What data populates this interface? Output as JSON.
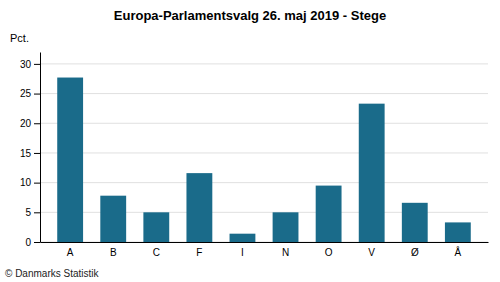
{
  "chart_data": {
    "type": "bar",
    "title": "Europa-Parlamentsvalg 26. maj 2019 - Stege",
    "ylabel": "Pct.",
    "annotations": [
      "© Danmarks Statistik"
    ],
    "categories": [
      "A",
      "B",
      "C",
      "F",
      "I",
      "N",
      "O",
      "V",
      "Ø",
      "Å"
    ],
    "values": [
      27.7,
      7.8,
      5.0,
      11.6,
      1.4,
      5.0,
      9.5,
      23.3,
      6.6,
      3.3
    ],
    "color": "#1a6b8a",
    "ylim": [
      0,
      32
    ],
    "yticks": [
      0,
      5,
      10,
      15,
      20,
      25,
      30
    ],
    "grid": true
  }
}
